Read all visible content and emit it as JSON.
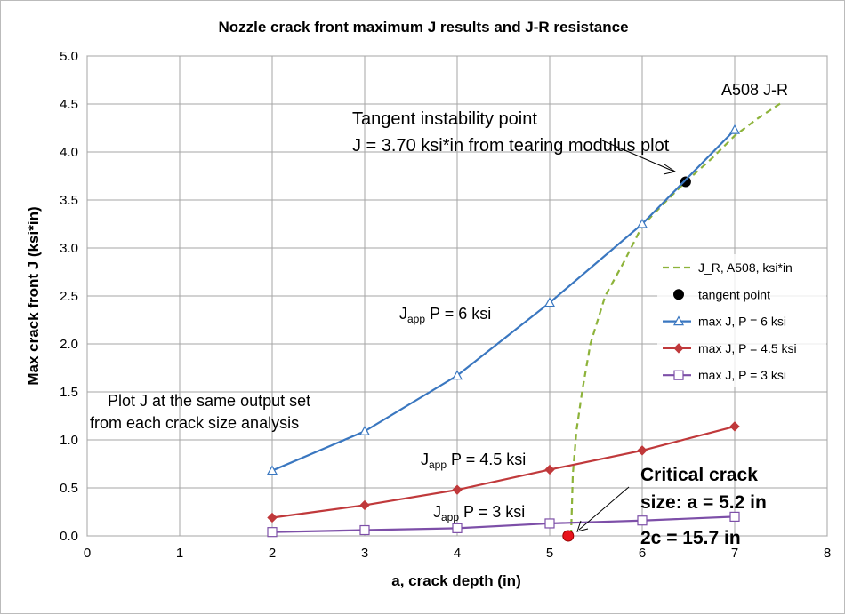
{
  "chart_data": {
    "type": "line",
    "title": "Nozzle crack front maximum J results and J-R resistance",
    "xlabel": "a, crack depth (in)",
    "ylabel": "Max crack front J (ksi*in)",
    "xlim": [
      0,
      8
    ],
    "ylim": [
      0,
      5
    ],
    "xticks": [
      "0",
      "1",
      "2",
      "3",
      "4",
      "5",
      "6",
      "7",
      "8"
    ],
    "yticks": [
      "0.0",
      "0.5",
      "1.0",
      "1.5",
      "2.0",
      "2.5",
      "3.0",
      "3.5",
      "4.0",
      "4.5",
      "5.0"
    ],
    "grid": true,
    "legend_position": "right",
    "series": [
      {
        "name": "J_R, A508, ksi*in",
        "color": "#8DB33A",
        "style": "dashed",
        "marker": "none",
        "x": [
          5.23,
          5.24,
          5.25,
          5.29,
          5.35,
          5.44,
          5.6,
          5.8,
          6.0,
          6.25,
          6.47,
          6.75,
          7.0,
          7.25,
          7.5
        ],
        "y": [
          0.0,
          0.3,
          0.64,
          1.1,
          1.5,
          2.0,
          2.5,
          2.85,
          3.23,
          3.48,
          3.69,
          3.93,
          4.17,
          4.35,
          4.51
        ]
      },
      {
        "name": "tangent point",
        "color": "#000000",
        "style": "none",
        "marker": "circle",
        "x": [
          6.47
        ],
        "y": [
          3.69
        ]
      },
      {
        "name": "max J, P = 6 ksi",
        "color": "#3A77C0",
        "style": "solid",
        "marker": "triangle-open",
        "x": [
          2,
          3,
          4,
          5,
          6,
          7
        ],
        "y": [
          0.68,
          1.09,
          1.67,
          2.43,
          3.25,
          4.23
        ]
      },
      {
        "name": "max J, P = 4.5 ksi",
        "color": "#C0393B",
        "style": "solid",
        "marker": "diamond",
        "x": [
          2,
          3,
          4,
          5,
          6,
          7
        ],
        "y": [
          0.19,
          0.32,
          0.48,
          0.69,
          0.89,
          1.14
        ]
      },
      {
        "name": "max J, P = 3 ksi",
        "color": "#7D4FA8",
        "style": "solid",
        "marker": "square-open",
        "x": [
          2,
          3,
          4,
          5,
          6,
          7
        ],
        "y": [
          0.04,
          0.06,
          0.08,
          0.13,
          0.16,
          0.2
        ]
      }
    ],
    "critical_point": {
      "x": 5.2,
      "y": 0.0,
      "color": "#E8141B"
    },
    "annotations": {
      "jr_label": "A508 J-R",
      "tangent_line1": "Tangent instability point",
      "tangent_line2": "J = 3.70 ksi*in from tearing modulus plot",
      "japp_main": "J",
      "japp_sub": "app",
      "p6": " P = 6 ksi",
      "p45": " P = 4.5 ksi",
      "p3": " P = 3 ksi",
      "plot_note1": "Plot J at the same output set",
      "plot_note2": "from each crack size analysis",
      "critical1": "Critical crack",
      "critical2": "size: a = 5.2 in",
      "critical3": "2c = 15.7 in"
    }
  }
}
